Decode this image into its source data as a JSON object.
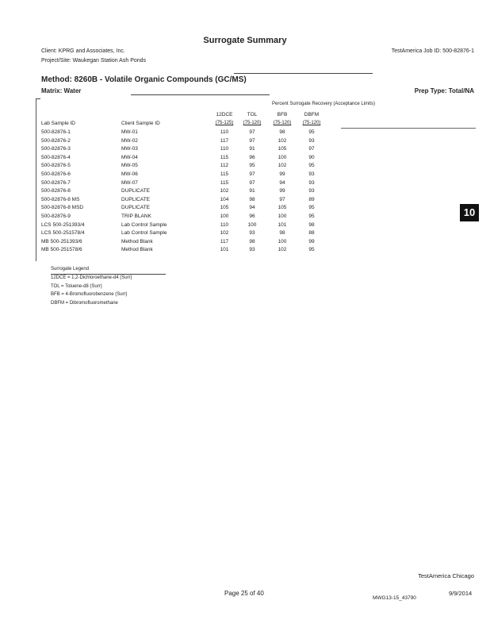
{
  "title": "Surrogate Summary",
  "client": "Client: KPRG and Associates, Inc.",
  "job_id": "TestAmerica Job ID: 500-82876-1",
  "project": "Project/Site: Waukegan Station Ash Ponds",
  "method": "Method: 8260B - Volatile Organic Compounds (GC/MS)",
  "matrix": "Matrix: Water",
  "prep_type": "Prep Type: Total/NA",
  "table": {
    "group_header": "Percent Surrogate Recovery (Acceptance Limits)",
    "col_lab": "Lab Sample ID",
    "col_client": "Client Sample ID",
    "surrogates": [
      {
        "name": "12DCE",
        "limits": "(75-125)"
      },
      {
        "name": "TOL",
        "limits": "(75-120)"
      },
      {
        "name": "BFB",
        "limits": "(75-120)"
      },
      {
        "name": "DBFM",
        "limits": "(75-120)"
      }
    ],
    "rows": [
      {
        "lab": "500-82876-1",
        "client": "MW-01",
        "v": [
          "110",
          "97",
          "98",
          "95"
        ]
      },
      {
        "lab": "500-82876-2",
        "client": "MW-02",
        "v": [
          "117",
          "97",
          "102",
          "93"
        ]
      },
      {
        "lab": "500-82876-3",
        "client": "MW-03",
        "v": [
          "110",
          "91",
          "105",
          "97"
        ]
      },
      {
        "lab": "500-82876-4",
        "client": "MW-04",
        "v": [
          "115",
          "96",
          "100",
          "90"
        ]
      },
      {
        "lab": "500-82876-5",
        "client": "MW-05",
        "v": [
          "112",
          "95",
          "102",
          "95"
        ]
      },
      {
        "lab": "500-82876-6",
        "client": "MW-06",
        "v": [
          "115",
          "97",
          "99",
          "93"
        ]
      },
      {
        "lab": "500-82876-7",
        "client": "MW-07",
        "v": [
          "115",
          "97",
          "94",
          "93"
        ]
      },
      {
        "lab": "500-82876-8",
        "client": "DUPLICATE",
        "v": [
          "102",
          "91",
          "99",
          "93"
        ]
      },
      {
        "lab": "500-82876-8 MS",
        "client": "DUPLICATE",
        "v": [
          "104",
          "98",
          "97",
          "89"
        ]
      },
      {
        "lab": "500-82876-8 MSD",
        "client": "DUPLICATE",
        "v": [
          "105",
          "94",
          "105",
          "95"
        ]
      },
      {
        "lab": "500-82876-9",
        "client": "TRIP BLANK",
        "v": [
          "100",
          "96",
          "100",
          "95"
        ]
      },
      {
        "lab": "LCS 500-251393/4",
        "client": "Lab Control Sample",
        "v": [
          "110",
          "100",
          "101",
          "98"
        ]
      },
      {
        "lab": "LCS 500-251578/4",
        "client": "Lab Control Sample",
        "v": [
          "102",
          "93",
          "98",
          "88"
        ]
      },
      {
        "lab": "MB 500-251393/6",
        "client": "Method Blank",
        "v": [
          "117",
          "98",
          "100",
          "99"
        ]
      },
      {
        "lab": "MB 500-251578/6",
        "client": "Method Blank",
        "v": [
          "101",
          "93",
          "102",
          "95"
        ]
      }
    ]
  },
  "legend": {
    "title": "Surrogate Legend",
    "items": [
      "12DCE = 1,2-Dichloroethane-d4 (Surr)",
      "TOL = Toluene-d8 (Surr)",
      "BFB = 4-Bromofluorobenzene (Surr)",
      "DBFM = Dibromofluoromethane"
    ]
  },
  "section_badge": "10",
  "footer": {
    "lab": "TestAmerica Chicago",
    "page": "Page 25 of 40",
    "date": "9/9/2014",
    "stamp": "MWG13-15_43790"
  }
}
